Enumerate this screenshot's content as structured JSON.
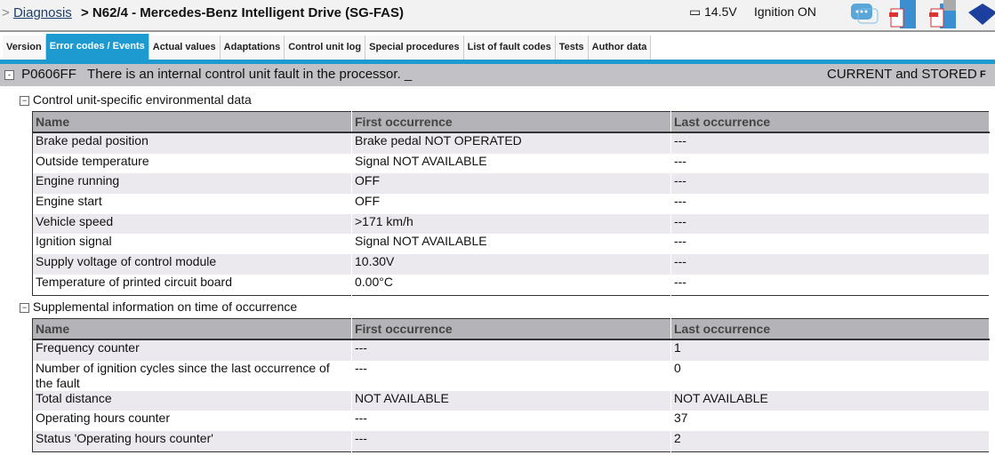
{
  "header": {
    "breadcrumb_prefix": ">",
    "breadcrumb_link": "Diagnosis",
    "title": "> N62/4 - Mercedes-Benz Intelligent Drive (SG-FAS)",
    "voltage": "14.5V",
    "ignition": "Ignition ON",
    "icons": [
      "chat-icon",
      "pdf-export-icon",
      "pdf-print-icon",
      "book-icon"
    ]
  },
  "tabs": [
    {
      "label": "Version"
    },
    {
      "label": "Error codes / Events",
      "active": true
    },
    {
      "label": "Actual values"
    },
    {
      "label": "Adaptations"
    },
    {
      "label": "Control unit log"
    },
    {
      "label": "Special procedures"
    },
    {
      "label": "List of fault codes"
    },
    {
      "label": "Tests"
    },
    {
      "label": "Author data"
    }
  ],
  "fault": {
    "code": "P0606FF",
    "text": "There is an internal control unit fault in the processor. _",
    "status": "CURRENT and STORED",
    "flag": "F"
  },
  "env": {
    "title": "Control unit-specific environmental data",
    "columns": [
      "Name",
      "First occurrence",
      "Last occurrence"
    ],
    "rows": [
      [
        "Brake pedal position",
        "Brake pedal NOT OPERATED",
        "---"
      ],
      [
        "Outside temperature",
        "Signal NOT AVAILABLE",
        "---"
      ],
      [
        "Engine running",
        "OFF",
        "---"
      ],
      [
        "Engine start",
        "OFF",
        "---"
      ],
      [
        "Vehicle speed",
        ">171 km/h",
        "---"
      ],
      [
        "Ignition signal",
        "Signal NOT AVAILABLE",
        "---"
      ],
      [
        "Supply voltage of control module",
        "10.30V",
        "---"
      ],
      [
        "Temperature of printed circuit board",
        "0.00°C",
        "---"
      ]
    ]
  },
  "supp": {
    "title": "Supplemental information on time of occurrence",
    "columns": [
      "Name",
      "First occurrence",
      "Last occurrence"
    ],
    "rows": [
      [
        "Frequency counter",
        "---",
        "1"
      ],
      [
        "Number of ignition cycles since the last occurrence of the fault",
        "---",
        "0"
      ],
      [
        "Total distance",
        "NOT AVAILABLE",
        "NOT AVAILABLE"
      ],
      [
        "Operating hours counter",
        "---",
        "37"
      ],
      [
        "Status 'Operating hours counter'",
        "---",
        "2"
      ]
    ]
  }
}
